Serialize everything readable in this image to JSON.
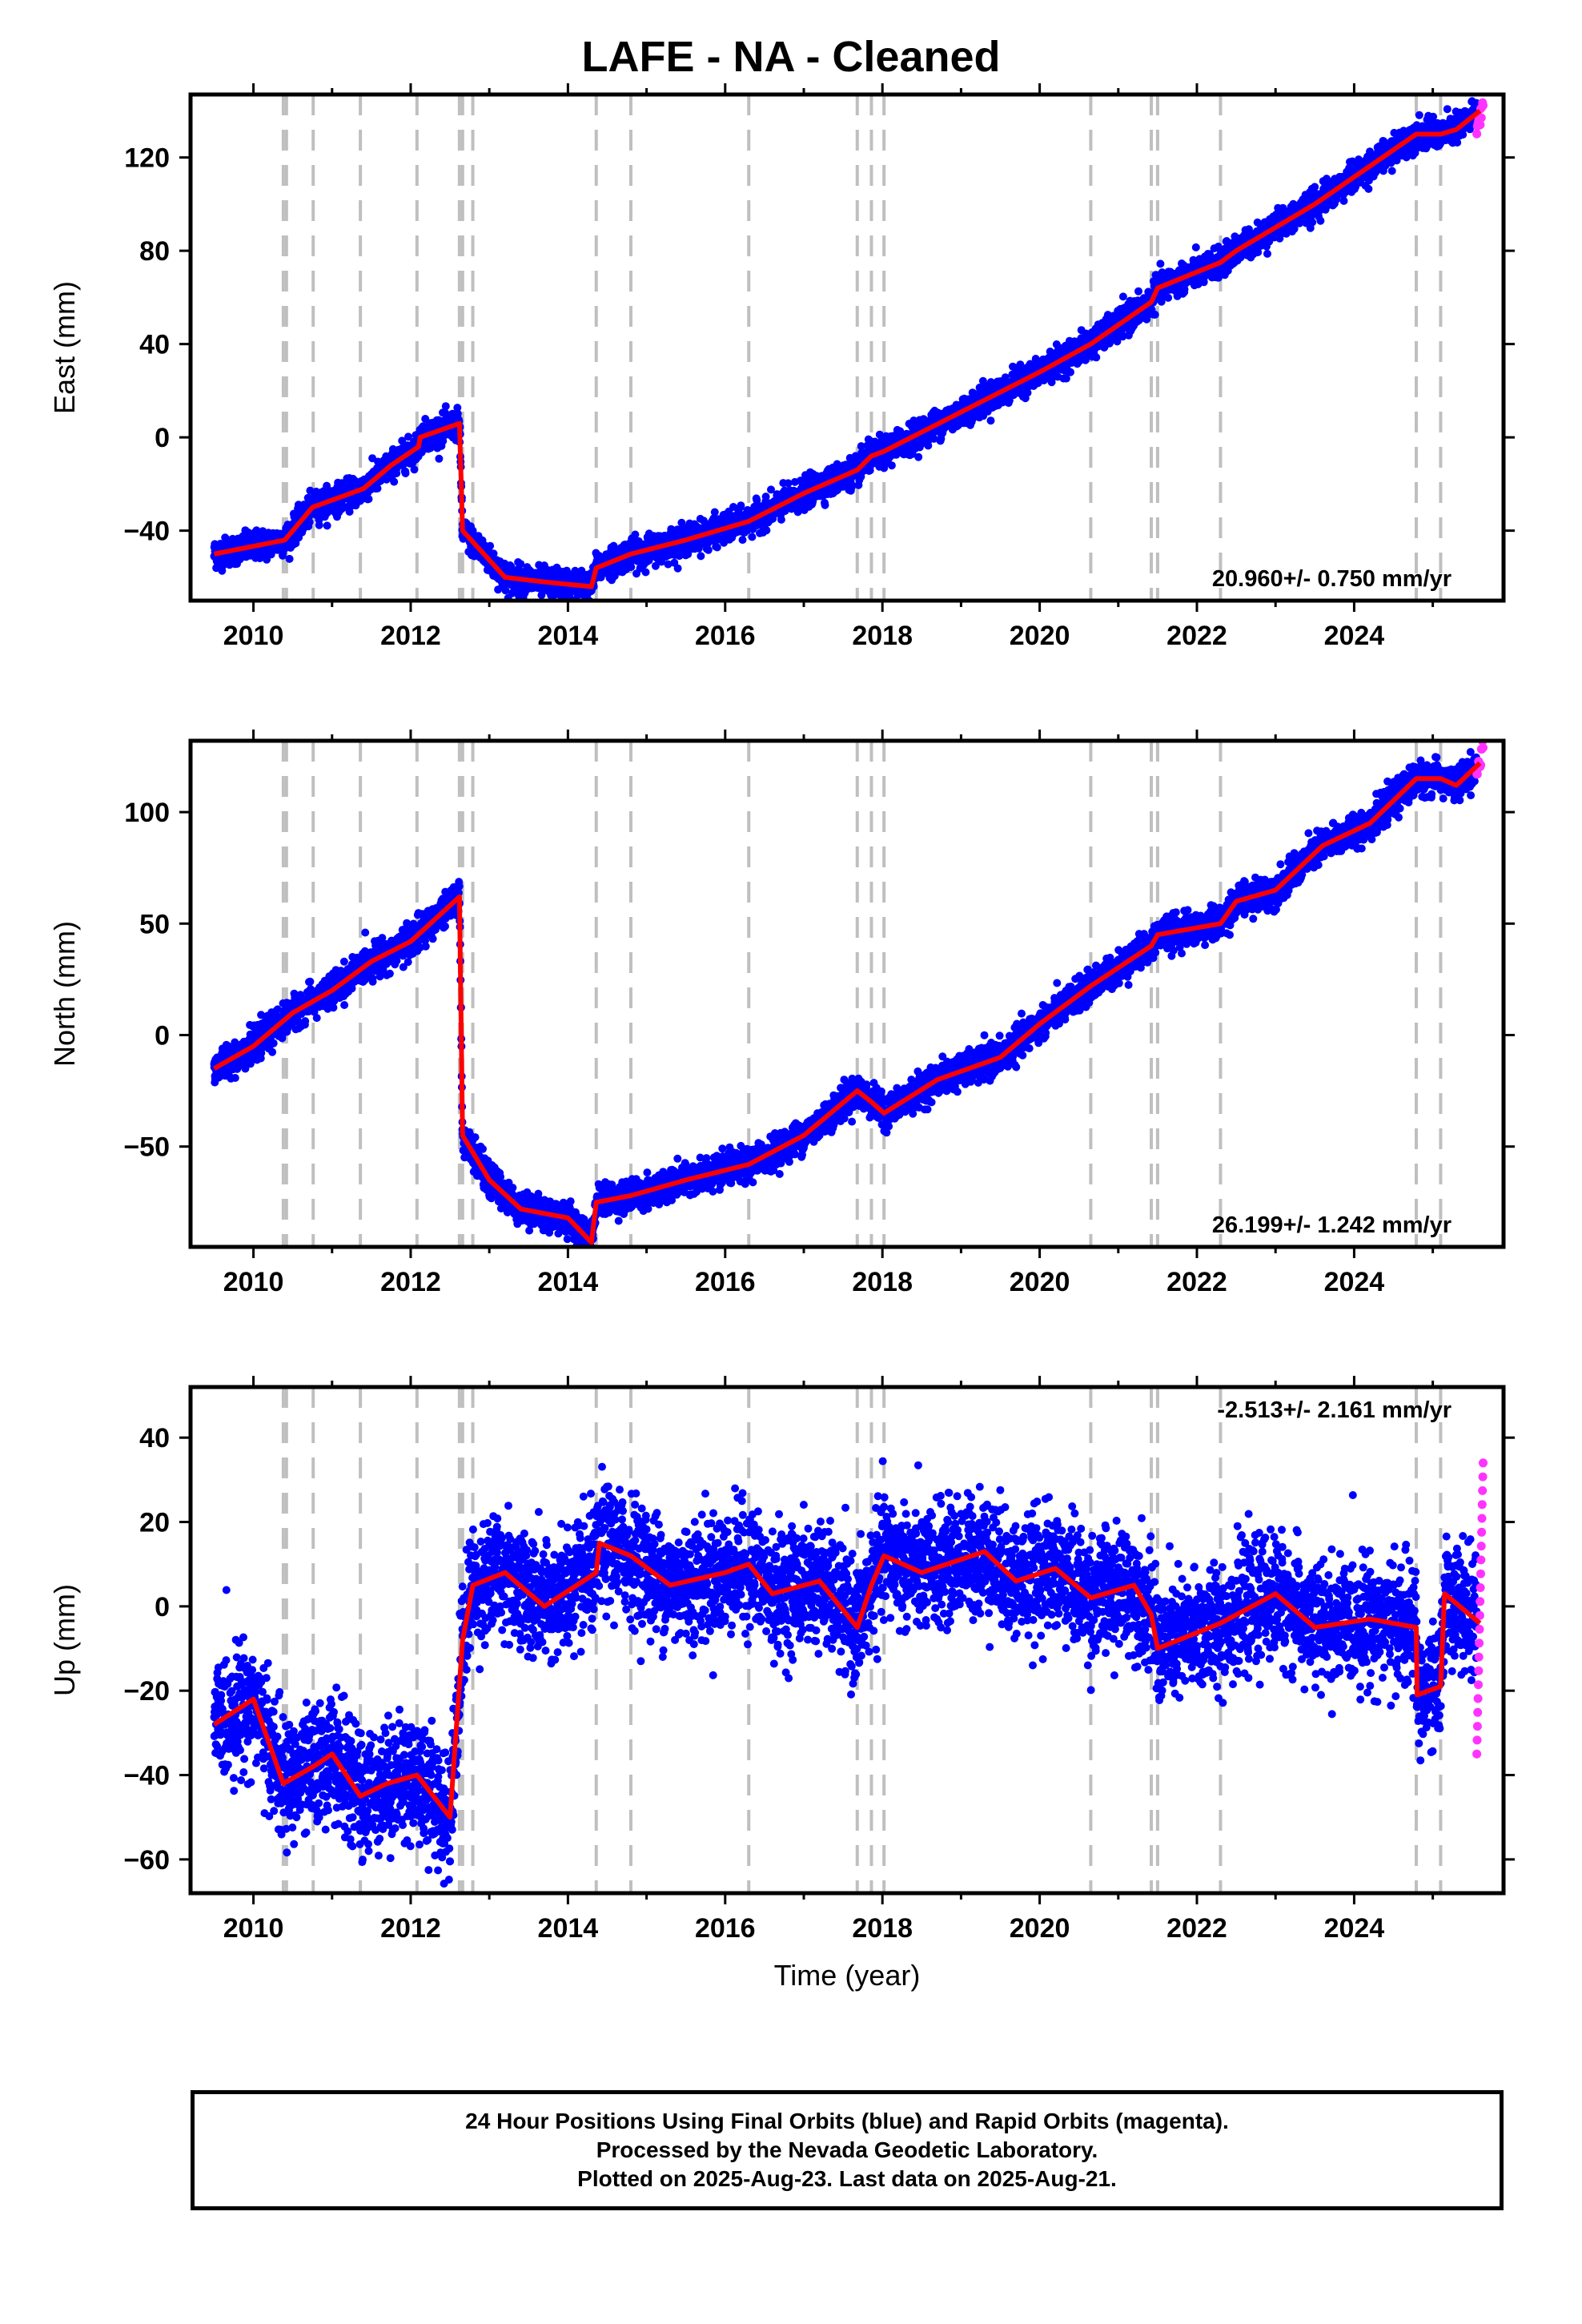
{
  "title": "LAFE  - NA - Cleaned",
  "footer": {
    "line1": "24 Hour Positions Using Final Orbits (blue) and Rapid Orbits (magenta).",
    "line2": "Processed by the Nevada Geodetic Laboratory.",
    "line3": "Plotted on 2025-Aug-23. Last data on 2025-Aug-21."
  },
  "colors": {
    "final": "#0000ff",
    "rapid": "#ff33ff",
    "model": "#ff0000",
    "events": "#bfbfbf"
  },
  "chart_data": [
    {
      "type": "scatter",
      "ylabel": "East (mm)",
      "xlabel": "",
      "rate_label": "20.960+/- 0.750 mm/yr",
      "xlim": [
        2009.2,
        2025.9
      ],
      "ylim": [
        -70,
        147
      ],
      "xticks": [
        2010,
        2012,
        2014,
        2016,
        2018,
        2020,
        2022,
        2024
      ],
      "yticks": [
        -40,
        0,
        40,
        80,
        120
      ],
      "grid": false,
      "events": [
        2010.38,
        2010.42,
        2010.76,
        2011.36,
        2012.08,
        2012.62,
        2012.66,
        2012.79,
        2014.36,
        2014.8,
        2016.3,
        2017.68,
        2017.86,
        2018.02,
        2020.65,
        2021.42,
        2021.5,
        2022.3,
        2024.79,
        2025.1
      ],
      "model": [
        [
          2009.5,
          -50
        ],
        [
          2010.4,
          -44
        ],
        [
          2010.75,
          -30
        ],
        [
          2011.4,
          -22
        ],
        [
          2011.75,
          -12
        ],
        [
          2012.1,
          -4
        ],
        [
          2012.12,
          0
        ],
        [
          2012.62,
          6
        ],
        [
          2012.66,
          -40
        ],
        [
          2013.2,
          -60
        ],
        [
          2013.7,
          -62
        ],
        [
          2014.3,
          -64
        ],
        [
          2014.36,
          -56
        ],
        [
          2014.8,
          -50
        ],
        [
          2015.5,
          -44
        ],
        [
          2016.3,
          -36
        ],
        [
          2017.0,
          -24
        ],
        [
          2017.68,
          -14
        ],
        [
          2017.86,
          -8
        ],
        [
          2018.02,
          -6
        ],
        [
          2019.3,
          16
        ],
        [
          2020.0,
          28
        ],
        [
          2020.65,
          40
        ],
        [
          2021.42,
          58
        ],
        [
          2021.5,
          64
        ],
        [
          2022.3,
          75
        ],
        [
          2022.5,
          80
        ],
        [
          2023.5,
          100
        ],
        [
          2024.79,
          130
        ],
        [
          2025.1,
          130
        ],
        [
          2025.3,
          132
        ],
        [
          2025.6,
          140
        ]
      ],
      "scatter_noise": 3,
      "rapid": {
        "x_start": 2025.56,
        "x_end": 2025.64,
        "y_start": 132,
        "y_end": 142,
        "n": 12,
        "noise": 2
      }
    },
    {
      "type": "scatter",
      "ylabel": "North (mm)",
      "xlabel": "",
      "rate_label": "26.199+/- 1.242 mm/yr",
      "xlim": [
        2009.2,
        2025.9
      ],
      "ylim": [
        -95,
        132
      ],
      "xticks": [
        2010,
        2012,
        2014,
        2016,
        2018,
        2020,
        2022,
        2024
      ],
      "yticks": [
        -50,
        0,
        50,
        100
      ],
      "grid": false,
      "events": [
        2010.38,
        2010.42,
        2010.76,
        2011.36,
        2012.08,
        2012.62,
        2012.66,
        2012.79,
        2014.36,
        2014.8,
        2016.3,
        2017.68,
        2017.86,
        2018.02,
        2020.65,
        2021.42,
        2021.5,
        2022.3,
        2024.79,
        2025.1
      ],
      "model": [
        [
          2009.5,
          -15
        ],
        [
          2010.0,
          -5
        ],
        [
          2010.5,
          10
        ],
        [
          2011.0,
          20
        ],
        [
          2011.5,
          33
        ],
        [
          2012.0,
          42
        ],
        [
          2012.62,
          62
        ],
        [
          2012.66,
          -45
        ],
        [
          2013.0,
          -65
        ],
        [
          2013.4,
          -78
        ],
        [
          2014.0,
          -82
        ],
        [
          2014.3,
          -93
        ],
        [
          2014.36,
          -75
        ],
        [
          2014.8,
          -72
        ],
        [
          2015.5,
          -65
        ],
        [
          2016.3,
          -58
        ],
        [
          2017.0,
          -45
        ],
        [
          2017.68,
          -25
        ],
        [
          2017.86,
          -30
        ],
        [
          2018.02,
          -35
        ],
        [
          2018.7,
          -20
        ],
        [
          2019.5,
          -10
        ],
        [
          2020.0,
          5
        ],
        [
          2020.65,
          22
        ],
        [
          2021.42,
          40
        ],
        [
          2021.5,
          45
        ],
        [
          2022.3,
          50
        ],
        [
          2022.5,
          60
        ],
        [
          2023.0,
          65
        ],
        [
          2023.6,
          85
        ],
        [
          2024.2,
          95
        ],
        [
          2024.79,
          115
        ],
        [
          2025.1,
          115
        ],
        [
          2025.3,
          112
        ],
        [
          2025.6,
          122
        ]
      ],
      "scatter_noise": 3.5,
      "rapid": {
        "x_start": 2025.56,
        "x_end": 2025.64,
        "y_start": 118,
        "y_end": 128,
        "n": 12,
        "noise": 2
      }
    },
    {
      "type": "scatter",
      "ylabel": "Up (mm)",
      "xlabel": "Time (year)",
      "rate_label": "-2.513+/- 2.161 mm/yr",
      "xlim": [
        2009.2,
        2025.9
      ],
      "ylim": [
        -68,
        52
      ],
      "xticks": [
        2010,
        2012,
        2014,
        2016,
        2018,
        2020,
        2022,
        2024
      ],
      "yticks": [
        -60,
        -40,
        -20,
        0,
        20,
        40
      ],
      "grid": false,
      "events": [
        2010.38,
        2010.42,
        2010.76,
        2011.36,
        2012.08,
        2012.62,
        2012.66,
        2012.79,
        2014.36,
        2014.8,
        2016.3,
        2017.68,
        2017.86,
        2018.02,
        2020.65,
        2021.42,
        2021.5,
        2022.3,
        2024.79,
        2025.1
      ],
      "model": [
        [
          2009.5,
          -28
        ],
        [
          2010.0,
          -22
        ],
        [
          2010.38,
          -42
        ],
        [
          2010.76,
          -38
        ],
        [
          2011.0,
          -35
        ],
        [
          2011.36,
          -45
        ],
        [
          2011.7,
          -42
        ],
        [
          2012.08,
          -40
        ],
        [
          2012.5,
          -50
        ],
        [
          2012.66,
          -8
        ],
        [
          2012.79,
          5
        ],
        [
          2013.2,
          8
        ],
        [
          2013.7,
          0
        ],
        [
          2014.36,
          8
        ],
        [
          2014.4,
          15
        ],
        [
          2014.8,
          12
        ],
        [
          2015.3,
          5
        ],
        [
          2016.0,
          8
        ],
        [
          2016.3,
          10
        ],
        [
          2016.6,
          3
        ],
        [
          2017.2,
          6
        ],
        [
          2017.68,
          -5
        ],
        [
          2017.86,
          5
        ],
        [
          2018.02,
          12
        ],
        [
          2018.5,
          8
        ],
        [
          2019.3,
          13
        ],
        [
          2019.7,
          6
        ],
        [
          2020.2,
          9
        ],
        [
          2020.65,
          2
        ],
        [
          2021.2,
          5
        ],
        [
          2021.42,
          -2
        ],
        [
          2021.5,
          -10
        ],
        [
          2022.3,
          -4
        ],
        [
          2022.5,
          -2
        ],
        [
          2023.0,
          3
        ],
        [
          2023.5,
          -5
        ],
        [
          2024.2,
          -3
        ],
        [
          2024.79,
          -5
        ],
        [
          2024.8,
          -21
        ],
        [
          2025.1,
          -19
        ],
        [
          2025.15,
          3
        ],
        [
          2025.6,
          -4
        ]
      ],
      "scatter_noise": 7,
      "rapid": {
        "x_start": 2025.56,
        "x_end": 2025.64,
        "y_start": -35,
        "y_end": 34,
        "n": 22,
        "noise": 0
      }
    }
  ]
}
